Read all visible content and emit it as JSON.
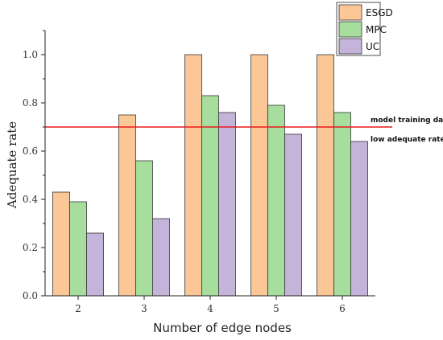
{
  "chart_data": {
    "type": "bar",
    "title": "",
    "xlabel": "Number of edge nodes",
    "ylabel": "Adequate rate",
    "categories": [
      "2",
      "3",
      "4",
      "5",
      "6"
    ],
    "ylim": [
      0,
      1.1
    ],
    "yticks": [
      "0.0",
      "0.2",
      "0.4",
      "0.6",
      "0.8",
      "1.0"
    ],
    "legend_position": "top-right",
    "series": [
      {
        "name": "ESGD",
        "values": [
          0.43,
          0.75,
          1.0,
          1.0,
          1.0
        ],
        "color": "#FCC797"
      },
      {
        "name": "MPC",
        "values": [
          0.39,
          0.56,
          0.83,
          0.79,
          0.76
        ],
        "color": "#A7DE9E"
      },
      {
        "name": "UC",
        "values": [
          0.26,
          0.32,
          0.76,
          0.67,
          0.64
        ],
        "color": "#C5B4DA"
      }
    ],
    "reference_line": {
      "value": 0.7,
      "color": "#E8191C",
      "labels": [
        "model training date",
        "low adequate rate"
      ]
    }
  }
}
